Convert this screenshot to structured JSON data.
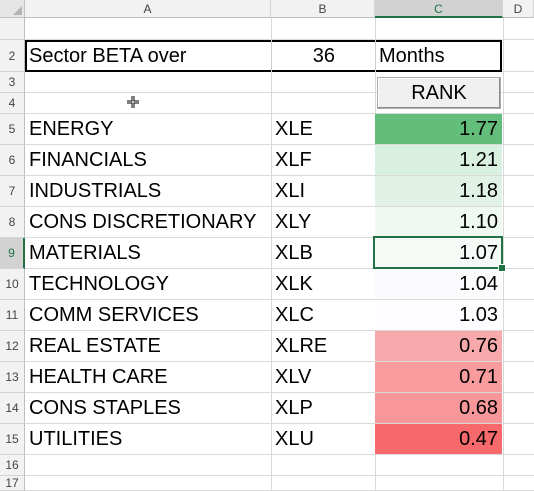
{
  "columns": [
    "A",
    "B",
    "C",
    "D"
  ],
  "rows": [
    "2",
    "3",
    "4",
    "5",
    "6",
    "7",
    "8",
    "9",
    "10",
    "11",
    "12",
    "13",
    "14",
    "15",
    "16",
    "17"
  ],
  "header_row": {
    "label": "Sector BETA  over",
    "months": "36",
    "unit": "Months"
  },
  "rank_button": "RANK",
  "sectors": [
    {
      "name": "ENERGY",
      "ticker": "XLE",
      "beta": "1.77",
      "color": "#63be7b"
    },
    {
      "name": "FINANCIALS",
      "ticker": "XLF",
      "beta": "1.21",
      "color": "#d9efdf"
    },
    {
      "name": "INDUSTRIALS",
      "ticker": "XLI",
      "beta": "1.18",
      "color": "#e0f2e5"
    },
    {
      "name": "CONS DISCRETIONARY",
      "ticker": "XLY",
      "beta": "1.10",
      "color": "#eff8f1"
    },
    {
      "name": "MATERIALS",
      "ticker": "XLB",
      "beta": "1.07",
      "color": "#f5faf6"
    },
    {
      "name": "TECHNOLOGY",
      "ticker": "XLK",
      "beta": "1.04",
      "color": "#fbfbfd"
    },
    {
      "name": "COMM SERVICES",
      "ticker": "XLC",
      "beta": "1.03",
      "color": "#fdfdff"
    },
    {
      "name": "REAL ESTATE",
      "ticker": "XLRE",
      "beta": "0.76",
      "color": "#f8a9ab"
    },
    {
      "name": "HEALTH CARE",
      "ticker": "XLV",
      "beta": "0.71",
      "color": "#f89c9e"
    },
    {
      "name": "CONS STAPLES",
      "ticker": "XLP",
      "beta": "0.68",
      "color": "#f8979a"
    },
    {
      "name": "UTILITIES",
      "ticker": "XLU",
      "beta": "0.47",
      "color": "#f8696b"
    }
  ],
  "selected_cell": "C9",
  "colors": {
    "selection": "#217346",
    "header_bg": "#f2f2f2",
    "gridline": "#d9d9d9"
  }
}
